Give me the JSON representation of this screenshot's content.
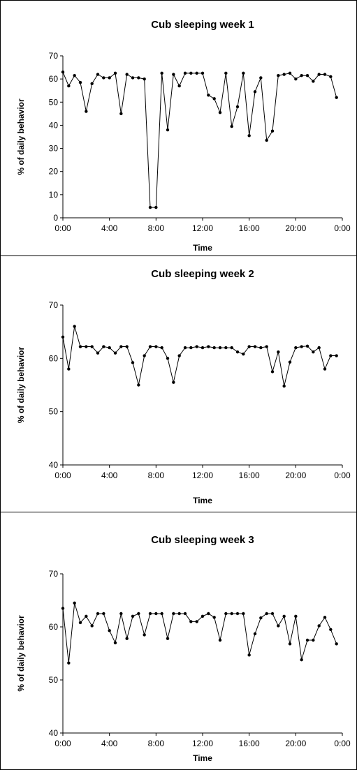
{
  "chart_data": [
    {
      "type": "line",
      "title": "Cub sleeping week 1",
      "xlabel": "Time",
      "ylabel": "% of daily behavior",
      "xlim": [
        0,
        24
      ],
      "ylim": [
        0,
        70
      ],
      "x_ticks": [
        "0:00",
        "4:00",
        "8:00",
        "12:00",
        "16:00",
        "20:00",
        "0:00"
      ],
      "y_ticks": [
        "0",
        "10",
        "20",
        "30",
        "40",
        "50",
        "60",
        "70"
      ],
      "grid": false,
      "series": [
        {
          "x": [
            0,
            0.5,
            1,
            1.5,
            2,
            2.5,
            3,
            3.5,
            4,
            4.5,
            5,
            5.5,
            6,
            6.5,
            7,
            7.5,
            8,
            8.5,
            9,
            9.5,
            10,
            10.5,
            11,
            11.5,
            12,
            12.5,
            13,
            13.5,
            14,
            14.5,
            15,
            15.5,
            16,
            16.5,
            17,
            17.5,
            18,
            18.5,
            19,
            19.5,
            20,
            20.5,
            21,
            21.5,
            22,
            22.5,
            23,
            23.5
          ],
          "values": [
            63,
            57,
            61.5,
            58.5,
            46,
            58,
            62,
            60.5,
            60.5,
            62.5,
            45,
            62,
            60.5,
            60.5,
            60,
            4.5,
            4.5,
            62.5,
            38,
            62,
            57,
            62.5,
            62.5,
            62.5,
            62.5,
            53,
            51.5,
            45.5,
            62.5,
            39.5,
            48,
            62.5,
            35.5,
            54.5,
            60.5,
            33.5,
            37.5,
            61.5,
            62,
            62.5,
            60,
            61.5,
            61.5,
            59,
            62,
            62,
            61,
            52
          ]
        }
      ]
    },
    {
      "type": "line",
      "title": "Cub sleeping week 2",
      "xlabel": "Time",
      "ylabel": "% of daily behavior",
      "xlim": [
        0,
        24
      ],
      "ylim": [
        40,
        70
      ],
      "x_ticks": [
        "0:00",
        "4:00",
        "8:00",
        "12:00",
        "16:00",
        "20:00",
        "0:00"
      ],
      "y_ticks": [
        "40",
        "50",
        "60",
        "70"
      ],
      "grid": false,
      "series": [
        {
          "x": [
            0,
            0.5,
            1,
            1.5,
            2,
            2.5,
            3,
            3.5,
            4,
            4.5,
            5,
            5.5,
            6,
            6.5,
            7,
            7.5,
            8,
            8.5,
            9,
            9.5,
            10,
            10.5,
            11,
            11.5,
            12,
            12.5,
            13,
            13.5,
            14,
            14.5,
            15,
            15.5,
            16,
            16.5,
            17,
            17.5,
            18,
            18.5,
            19,
            19.5,
            20,
            20.5,
            21,
            21.5,
            22,
            22.5,
            23,
            23.5
          ],
          "values": [
            64,
            58,
            66,
            62.2,
            62.2,
            62.2,
            61,
            62.2,
            62,
            61,
            62.2,
            62.2,
            59.2,
            55,
            60.5,
            62.2,
            62.2,
            62,
            60,
            55.5,
            60.5,
            62,
            62,
            62.2,
            62,
            62.2,
            62,
            62,
            62,
            62,
            61.2,
            60.8,
            62.2,
            62.2,
            62,
            62.2,
            57.5,
            61.2,
            54.8,
            59.3,
            62,
            62.2,
            62.3,
            61.2,
            62,
            58,
            60.5,
            60.5
          ]
        }
      ]
    },
    {
      "type": "line",
      "title": "Cub sleeping week 3",
      "xlabel": "Time",
      "ylabel": "% of daily behavior",
      "xlim": [
        0,
        24
      ],
      "ylim": [
        40,
        70
      ],
      "x_ticks": [
        "0:00",
        "4:00",
        "8:00",
        "12:00",
        "16:00",
        "20:00",
        "0:00"
      ],
      "y_ticks": [
        "40",
        "50",
        "60",
        "70"
      ],
      "grid": false,
      "series": [
        {
          "x": [
            0,
            0.5,
            1,
            1.5,
            2,
            2.5,
            3,
            3.5,
            4,
            4.5,
            5,
            5.5,
            6,
            6.5,
            7,
            7.5,
            8,
            8.5,
            9,
            9.5,
            10,
            10.5,
            11,
            11.5,
            12,
            12.5,
            13,
            13.5,
            14,
            14.5,
            15,
            15.5,
            16,
            16.5,
            17,
            17.5,
            18,
            18.5,
            19,
            19.5,
            20,
            20.5,
            21,
            21.5,
            22,
            22.5,
            23,
            23.5
          ],
          "values": [
            63.5,
            53.2,
            64.5,
            60.8,
            62,
            60.2,
            62.5,
            62.5,
            59.3,
            57,
            62.5,
            57.8,
            62,
            62.5,
            58.5,
            62.5,
            62.5,
            62.5,
            57.8,
            62.5,
            62.5,
            62.5,
            61,
            61,
            62,
            62.5,
            61.8,
            57.5,
            62.5,
            62.5,
            62.5,
            62.5,
            54.7,
            58.7,
            61.7,
            62.5,
            62.5,
            60.2,
            62,
            56.8,
            62,
            53.8,
            57.5,
            57.5,
            60.2,
            61.8,
            59.5,
            56.8
          ]
        }
      ]
    }
  ]
}
